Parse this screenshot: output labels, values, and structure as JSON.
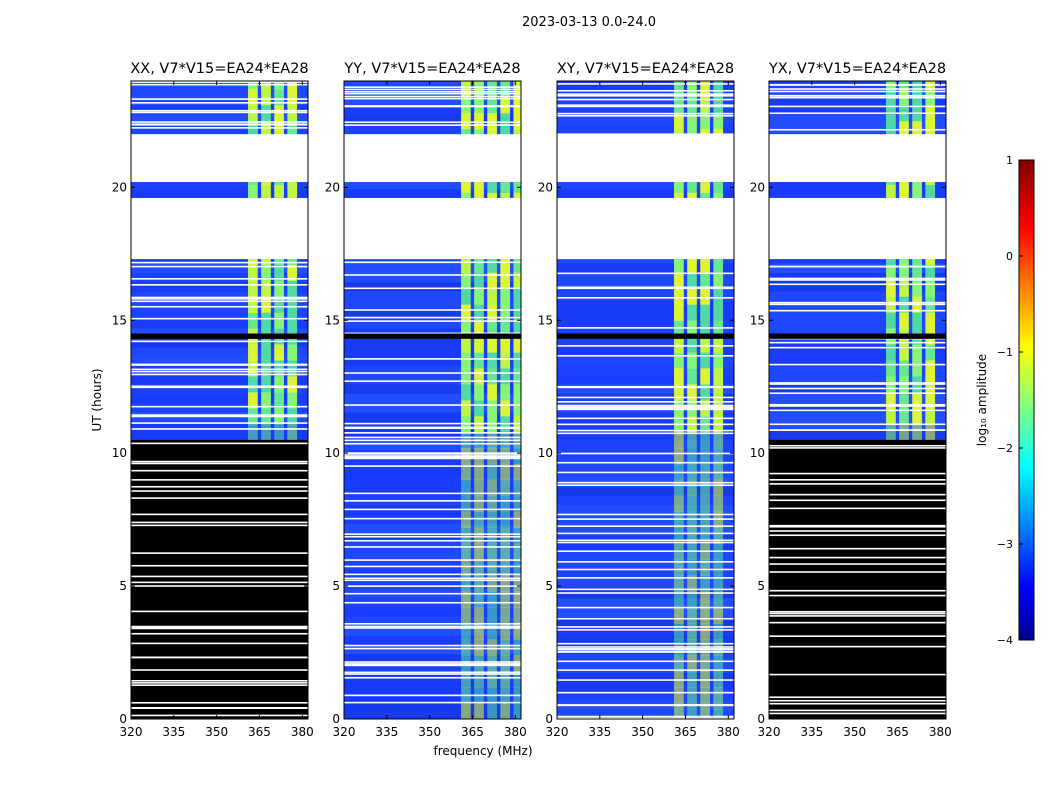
{
  "figure": {
    "suptitle": "2023-03-13 0.0-24.0",
    "xlabel": "frequency (MHz)",
    "ylabel": "UT (hours)"
  },
  "chart_data": {
    "type": "heatmap",
    "title": "2023-03-13 0.0-24.0",
    "xlabel": "frequency (MHz)",
    "ylabel": "UT (hours)",
    "xlim": [
      320,
      382
    ],
    "ylim": [
      0,
      24
    ],
    "x_ticks": [
      320,
      335,
      350,
      365,
      380
    ],
    "y_ticks": [
      0,
      5,
      10,
      15,
      20
    ],
    "panels": [
      {
        "title": "XX, V7*V15=EA24*EA28",
        "early_hours_blank": true,
        "rfi_band_mhz": [
          361,
          376
        ],
        "late_rfi_band_mhz": [
          361,
          376
        ]
      },
      {
        "title": "YY, V7*V15=EA24*EA28",
        "early_hours_blank": false,
        "rfi_band_mhz": [
          361,
          380
        ],
        "late_rfi_band_mhz": [
          361,
          380
        ]
      },
      {
        "title": "XY, V7*V15=EA24*EA28",
        "early_hours_blank": false,
        "rfi_band_mhz": [
          361,
          379
        ],
        "late_rfi_band_mhz": [
          361,
          379
        ]
      },
      {
        "title": "YX, V7*V15=EA24*EA28",
        "early_hours_blank": true,
        "rfi_band_mhz": [
          361,
          376
        ],
        "late_rfi_band_mhz": [
          361,
          376
        ]
      }
    ],
    "flagged_ut_ranges": [
      [
        17.3,
        19.6
      ],
      [
        20.2,
        22.0
      ]
    ],
    "dropout_ut_ranges": [
      [
        14.3,
        14.5
      ]
    ],
    "colorbar": {
      "label": "log₁₀ amplitude",
      "colormap": "jet",
      "range": [
        -4,
        1
      ],
      "ticks": [
        1,
        0,
        -1,
        -2,
        -3,
        -4
      ],
      "tick_labels": [
        "1",
        "0",
        "−1",
        "−2",
        "−3",
        "−4"
      ]
    }
  },
  "colors": {
    "background_low": "#1a3cff",
    "flag_black": "#000000",
    "flag_white": "#ffffff"
  }
}
